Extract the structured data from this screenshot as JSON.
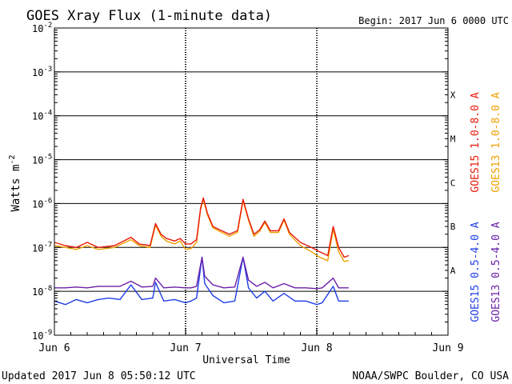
{
  "chart_data": {
    "type": "line",
    "title": "GOES Xray Flux (1-minute data)",
    "begin_label": "Begin:  2017 Jun 6 0000 UTC",
    "xlabel": "Universal Time",
    "ylabel": "Watts m",
    "ylabel_exponent": "-2",
    "y_scale": "log",
    "ylim": [
      1e-09,
      0.01
    ],
    "xlim": [
      "2017-06-06 00:00",
      "2017-06-09 00:00"
    ],
    "grid": true,
    "x_ticks": [
      {
        "label": "Jun 6",
        "x": "2017-06-06 00:00"
      },
      {
        "label": "Jun 7",
        "x": "2017-06-07 00:00"
      },
      {
        "label": "Jun 8",
        "x": "2017-06-08 00:00"
      },
      {
        "label": "Jun 9",
        "x": "2017-06-09 00:00"
      }
    ],
    "y_ticks": [
      {
        "base": "10",
        "exp": "-9",
        "value": 1e-09
      },
      {
        "base": "10",
        "exp": "-8",
        "value": 1e-08
      },
      {
        "base": "10",
        "exp": "-7",
        "value": 1e-07
      },
      {
        "base": "10",
        "exp": "-6",
        "value": 1e-06
      },
      {
        "base": "10",
        "exp": "-5",
        "value": 1e-05
      },
      {
        "base": "10",
        "exp": "-4",
        "value": 0.0001
      },
      {
        "base": "10",
        "exp": "-3",
        "value": 0.001
      },
      {
        "base": "10",
        "exp": "-2",
        "value": 0.01
      }
    ],
    "flare_classes": [
      {
        "label": "A",
        "value": 3e-08
      },
      {
        "label": "B",
        "value": 3e-07
      },
      {
        "label": "C",
        "value": 3e-06
      },
      {
        "label": "M",
        "value": 3e-05
      },
      {
        "label": "X",
        "value": 0.0003
      }
    ],
    "legend": {
      "placement": "right",
      "entries": [
        {
          "label": "GOES15 1.0-8.0 A",
          "color": "#e8170a"
        },
        {
          "label": "GOES13 1.0-8.0 A",
          "color": "#f0a000"
        },
        {
          "label": "GOES15 0.5-4.0 A",
          "color": "#1f3ee6"
        },
        {
          "label": "GOES13 0.5-4.0 A",
          "color": "#6a1fa8"
        }
      ]
    },
    "series": [
      {
        "name": "GOES15 1.0-8.0 A",
        "color": "#e8170a",
        "points": [
          [
            "2017-06-06 00:00",
            1.3e-07
          ],
          [
            "2017-06-06 02:00",
            1.1e-07
          ],
          [
            "2017-06-06 04:00",
            1e-07
          ],
          [
            "2017-06-06 06:00",
            1.3e-07
          ],
          [
            "2017-06-06 08:00",
            1e-07
          ],
          [
            "2017-06-06 11:00",
            1.1e-07
          ],
          [
            "2017-06-06 14:00",
            1.7e-07
          ],
          [
            "2017-06-06 15:30",
            1.2e-07
          ],
          [
            "2017-06-06 17:30",
            1.1e-07
          ],
          [
            "2017-06-06 18:30",
            3.5e-07
          ],
          [
            "2017-06-06 19:30",
            2e-07
          ],
          [
            "2017-06-06 20:30",
            1.6e-07
          ],
          [
            "2017-06-06 22:00",
            1.4e-07
          ],
          [
            "2017-06-06 23:00",
            1.6e-07
          ],
          [
            "2017-06-07 00:00",
            1.2e-07
          ],
          [
            "2017-06-07 01:00",
            1.2e-07
          ],
          [
            "2017-06-07 02:00",
            1.5e-07
          ],
          [
            "2017-06-07 02:45",
            8e-07
          ],
          [
            "2017-06-07 03:15",
            1.35e-06
          ],
          [
            "2017-06-07 04:00",
            6e-07
          ],
          [
            "2017-06-07 05:00",
            3e-07
          ],
          [
            "2017-06-07 06:00",
            2.6e-07
          ],
          [
            "2017-06-07 08:00",
            2e-07
          ],
          [
            "2017-06-07 09:30",
            2.4e-07
          ],
          [
            "2017-06-07 10:30",
            1.25e-06
          ],
          [
            "2017-06-07 11:30",
            4.5e-07
          ],
          [
            "2017-06-07 12:30",
            2e-07
          ],
          [
            "2017-06-07 13:30",
            2.5e-07
          ],
          [
            "2017-06-07 14:30",
            4e-07
          ],
          [
            "2017-06-07 15:30",
            2.4e-07
          ],
          [
            "2017-06-07 17:00",
            2.4e-07
          ],
          [
            "2017-06-07 18:00",
            4.5e-07
          ],
          [
            "2017-06-07 19:00",
            2.2e-07
          ],
          [
            "2017-06-07 21:00",
            1.3e-07
          ],
          [
            "2017-06-07 23:00",
            1e-07
          ],
          [
            "2017-06-08 00:30",
            8e-08
          ],
          [
            "2017-06-08 02:00",
            6.5e-08
          ],
          [
            "2017-06-08 03:00",
            3e-07
          ],
          [
            "2017-06-08 04:00",
            1e-07
          ],
          [
            "2017-06-08 05:00",
            6e-08
          ],
          [
            "2017-06-08 05:50",
            6.5e-08
          ]
        ]
      },
      {
        "name": "GOES13 1.0-8.0 A",
        "color": "#f0a000",
        "points": [
          [
            "2017-06-06 00:00",
            1.1e-07
          ],
          [
            "2017-06-06 02:00",
            1e-07
          ],
          [
            "2017-06-06 04:00",
            9e-08
          ],
          [
            "2017-06-06 06:00",
            1.1e-07
          ],
          [
            "2017-06-06 08:00",
            9e-08
          ],
          [
            "2017-06-06 11:00",
            1e-07
          ],
          [
            "2017-06-06 14:00",
            1.5e-07
          ],
          [
            "2017-06-06 15:30",
            1.1e-07
          ],
          [
            "2017-06-06 17:30",
            1e-07
          ],
          [
            "2017-06-06 18:30",
            3.2e-07
          ],
          [
            "2017-06-06 19:30",
            1.8e-07
          ],
          [
            "2017-06-06 20:30",
            1.4e-07
          ],
          [
            "2017-06-06 22:00",
            1.2e-07
          ],
          [
            "2017-06-06 23:00",
            1.4e-07
          ],
          [
            "2017-06-07 00:00",
            9e-08
          ],
          [
            "2017-06-07 01:00",
            9.5e-08
          ],
          [
            "2017-06-07 02:00",
            1.3e-07
          ],
          [
            "2017-06-07 02:45",
            7.5e-07
          ],
          [
            "2017-06-07 03:15",
            1.25e-06
          ],
          [
            "2017-06-07 04:00",
            5.5e-07
          ],
          [
            "2017-06-07 05:00",
            2.8e-07
          ],
          [
            "2017-06-07 06:00",
            2.4e-07
          ],
          [
            "2017-06-07 08:00",
            1.8e-07
          ],
          [
            "2017-06-07 09:30",
            2.2e-07
          ],
          [
            "2017-06-07 10:30",
            1.15e-06
          ],
          [
            "2017-06-07 11:30",
            4.2e-07
          ],
          [
            "2017-06-07 12:30",
            1.8e-07
          ],
          [
            "2017-06-07 13:30",
            2.3e-07
          ],
          [
            "2017-06-07 14:30",
            3.7e-07
          ],
          [
            "2017-06-07 15:30",
            2.2e-07
          ],
          [
            "2017-06-07 17:00",
            2.2e-07
          ],
          [
            "2017-06-07 18:00",
            4.2e-07
          ],
          [
            "2017-06-07 19:00",
            2e-07
          ],
          [
            "2017-06-07 21:00",
            1.1e-07
          ],
          [
            "2017-06-07 23:00",
            8e-08
          ],
          [
            "2017-06-08 00:30",
            6e-08
          ],
          [
            "2017-06-08 02:00",
            5e-08
          ],
          [
            "2017-06-08 03:00",
            2.6e-07
          ],
          [
            "2017-06-08 04:00",
            8e-08
          ],
          [
            "2017-06-08 05:00",
            4.8e-08
          ],
          [
            "2017-06-08 05:50",
            5e-08
          ]
        ]
      },
      {
        "name": "GOES15 0.5-4.0 A",
        "color": "#1f3ee6",
        "points": [
          [
            "2017-06-06 00:00",
            6e-09
          ],
          [
            "2017-06-06 02:00",
            5e-09
          ],
          [
            "2017-06-06 04:00",
            6.5e-09
          ],
          [
            "2017-06-06 06:00",
            5.5e-09
          ],
          [
            "2017-06-06 08:00",
            6.5e-09
          ],
          [
            "2017-06-06 10:00",
            7e-09
          ],
          [
            "2017-06-06 12:00",
            6.5e-09
          ],
          [
            "2017-06-06 14:00",
            1.4e-08
          ],
          [
            "2017-06-06 16:00",
            6.5e-09
          ],
          [
            "2017-06-06 18:00",
            7e-09
          ],
          [
            "2017-06-06 18:30",
            1.6e-08
          ],
          [
            "2017-06-06 20:00",
            6e-09
          ],
          [
            "2017-06-06 22:00",
            6.5e-09
          ],
          [
            "2017-06-07 00:00",
            5.5e-09
          ],
          [
            "2017-06-07 01:00",
            6e-09
          ],
          [
            "2017-06-07 02:00",
            7e-09
          ],
          [
            "2017-06-07 03:00",
            6e-08
          ],
          [
            "2017-06-07 03:30",
            1.5e-08
          ],
          [
            "2017-06-07 05:00",
            8e-09
          ],
          [
            "2017-06-07 07:00",
            5.5e-09
          ],
          [
            "2017-06-07 09:00",
            6e-09
          ],
          [
            "2017-06-07 10:30",
            6e-08
          ],
          [
            "2017-06-07 11:30",
            1.2e-08
          ],
          [
            "2017-06-07 13:00",
            7e-09
          ],
          [
            "2017-06-07 14:30",
            1e-08
          ],
          [
            "2017-06-07 16:00",
            6e-09
          ],
          [
            "2017-06-07 18:00",
            9e-09
          ],
          [
            "2017-06-07 20:00",
            6e-09
          ],
          [
            "2017-06-07 22:00",
            6e-09
          ],
          [
            "2017-06-08 00:00",
            5e-09
          ],
          [
            "2017-06-08 01:00",
            5.5e-09
          ],
          [
            "2017-06-08 03:00",
            1.3e-08
          ],
          [
            "2017-06-08 04:00",
            6e-09
          ],
          [
            "2017-06-08 05:50",
            6e-09
          ]
        ]
      },
      {
        "name": "GOES13 0.5-4.0 A",
        "color": "#6a1fa8",
        "points": [
          [
            "2017-06-06 00:00",
            1.2e-08
          ],
          [
            "2017-06-06 02:00",
            1.2e-08
          ],
          [
            "2017-06-06 04:00",
            1.25e-08
          ],
          [
            "2017-06-06 06:00",
            1.2e-08
          ],
          [
            "2017-06-06 08:00",
            1.3e-08
          ],
          [
            "2017-06-06 10:00",
            1.3e-08
          ],
          [
            "2017-06-06 12:00",
            1.3e-08
          ],
          [
            "2017-06-06 14:00",
            1.7e-08
          ],
          [
            "2017-06-06 16:00",
            1.25e-08
          ],
          [
            "2017-06-06 18:00",
            1.3e-08
          ],
          [
            "2017-06-06 18:30",
            2e-08
          ],
          [
            "2017-06-06 20:00",
            1.2e-08
          ],
          [
            "2017-06-06 22:00",
            1.25e-08
          ],
          [
            "2017-06-07 00:00",
            1.2e-08
          ],
          [
            "2017-06-07 01:00",
            1.2e-08
          ],
          [
            "2017-06-07 02:00",
            1.3e-08
          ],
          [
            "2017-06-07 03:00",
            6e-08
          ],
          [
            "2017-06-07 03:30",
            2.2e-08
          ],
          [
            "2017-06-07 05:00",
            1.4e-08
          ],
          [
            "2017-06-07 07:00",
            1.2e-08
          ],
          [
            "2017-06-07 09:00",
            1.25e-08
          ],
          [
            "2017-06-07 10:30",
            6e-08
          ],
          [
            "2017-06-07 11:30",
            1.8e-08
          ],
          [
            "2017-06-07 13:00",
            1.3e-08
          ],
          [
            "2017-06-07 14:30",
            1.6e-08
          ],
          [
            "2017-06-07 16:00",
            1.2e-08
          ],
          [
            "2017-06-07 18:00",
            1.5e-08
          ],
          [
            "2017-06-07 20:00",
            1.2e-08
          ],
          [
            "2017-06-07 22:00",
            1.2e-08
          ],
          [
            "2017-06-08 00:00",
            1.15e-08
          ],
          [
            "2017-06-08 01:00",
            1.2e-08
          ],
          [
            "2017-06-08 03:00",
            2e-08
          ],
          [
            "2017-06-08 04:00",
            1.2e-08
          ],
          [
            "2017-06-08 05:50",
            1.2e-08
          ]
        ]
      }
    ]
  },
  "footer": {
    "updated": "Updated 2017 Jun  8 05:50:12 UTC",
    "credit": "NOAA/SWPC Boulder, CO USA"
  }
}
